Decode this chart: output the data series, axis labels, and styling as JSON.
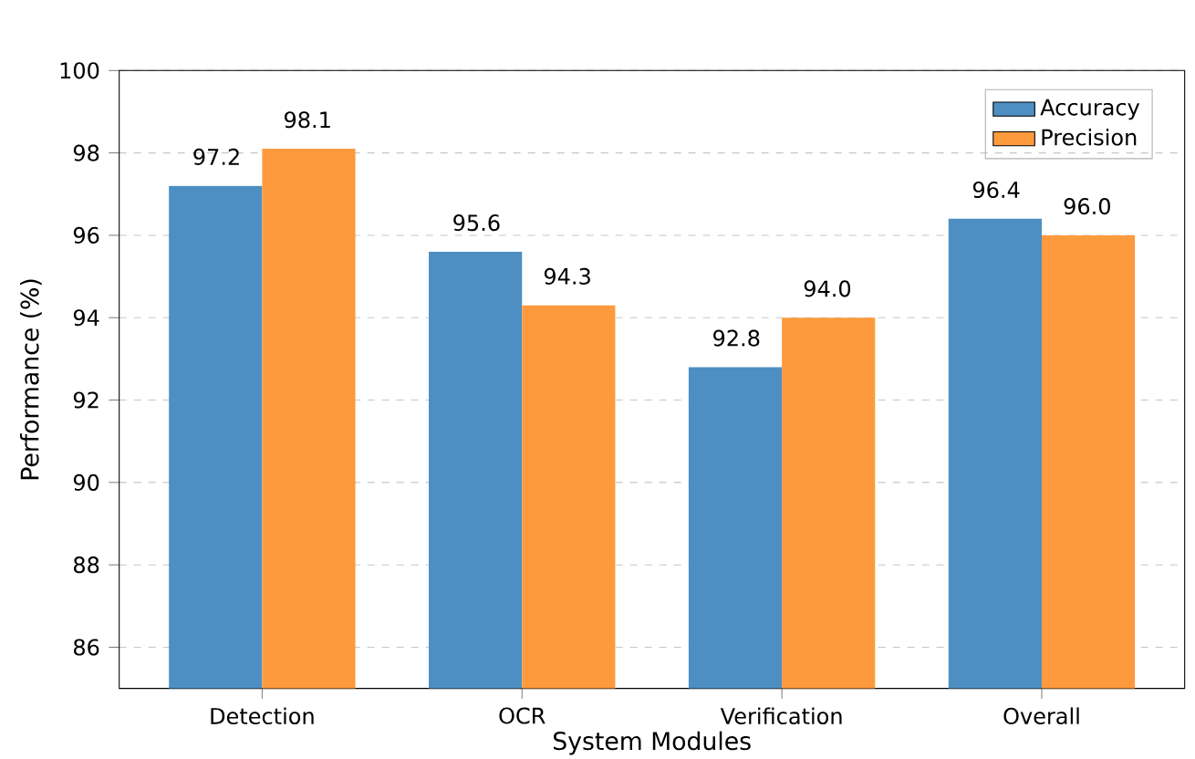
{
  "chart_data": {
    "type": "bar",
    "xlabel": "System Modules",
    "ylabel": "Performance (%)",
    "categories": [
      "Detection",
      "OCR",
      "Verification",
      "Overall"
    ],
    "series": [
      {
        "name": "Accuracy",
        "color": "#4d8fc2",
        "values": [
          97.2,
          95.6,
          92.8,
          96.4
        ],
        "value_labels": [
          "97.2",
          "95.6",
          "92.8",
          "96.4"
        ]
      },
      {
        "name": "Precision",
        "color": "#fd9a3e",
        "values": [
          98.1,
          94.3,
          94.0,
          96.0
        ],
        "value_labels": [
          "98.1",
          "94.3",
          "94.0",
          "96.0"
        ]
      }
    ],
    "ylim": [
      85,
      100
    ],
    "yticks": [
      86,
      88,
      90,
      92,
      94,
      96,
      98,
      100
    ],
    "grid": "y",
    "legend": "top right"
  }
}
